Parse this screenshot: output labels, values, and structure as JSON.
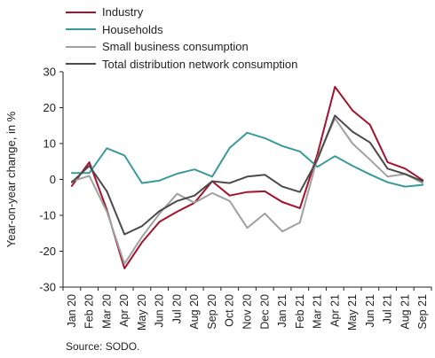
{
  "chart_data": {
    "type": "line",
    "ylabel": "Year-on-year change, in %",
    "ylim": [
      -30,
      30
    ],
    "yticks": [
      -30,
      -20,
      -10,
      0,
      10,
      20,
      30
    ],
    "categories": [
      "Jan 20",
      "Feb 20",
      "Mar 20",
      "Apr 20",
      "May 20",
      "Jun 20",
      "Jul 20",
      "Aug 20",
      "Sep 20",
      "Oct 20",
      "Nov 20",
      "Dec 20",
      "Jan 21",
      "Feb 21",
      "Mar 21",
      "Apr 21",
      "May 21",
      "Jun 21",
      "Jul 21",
      "Aug 21",
      "Sep 21"
    ],
    "x_tick_labels": [
      "Jan 20",
      "Feb 20",
      "Mar 20",
      "Apr 20",
      "May 20",
      "Jun 20",
      "Jul 20",
      "Aug 20",
      "Sep 20",
      "Oct 20",
      "Nov 20",
      "Dec 20",
      "Jan 21",
      "Feb 21",
      "Mar 21",
      "Apr 21",
      "May 21",
      "Jun 21",
      "Jul 21",
      "Aug 21",
      "Sep 21"
    ],
    "series": [
      {
        "name": "Industry",
        "color": "#a3132c",
        "values": [
          -1.8,
          4.8,
          -8.5,
          -24.8,
          -17.5,
          -11.8,
          -9.0,
          -6.5,
          -0.5,
          -4.5,
          -3.5,
          -3.3,
          -6.3,
          -8.0,
          7.0,
          25.8,
          19.2,
          15.2,
          4.8,
          3.0,
          -0.2
        ]
      },
      {
        "name": "Households",
        "color": "#3a9a9a",
        "values": [
          1.8,
          1.8,
          8.7,
          6.7,
          -1.0,
          -0.3,
          1.6,
          2.8,
          0.8,
          8.8,
          13.0,
          11.5,
          9.3,
          7.8,
          3.5,
          6.5,
          3.8,
          1.4,
          -0.8,
          -2.0,
          -1.5
        ]
      },
      {
        "name": "Small business consumption",
        "color": "#a0a0a0",
        "values": [
          -0.5,
          1.0,
          -9.0,
          -23.5,
          -16.0,
          -9.5,
          -4.0,
          -6.5,
          -3.8,
          -6.0,
          -13.5,
          -9.5,
          -14.5,
          -12.0,
          6.0,
          17.0,
          10.0,
          5.5,
          0.8,
          1.5,
          -1.0
        ]
      },
      {
        "name": "Total distribution network consumption",
        "color": "#4a4a4a",
        "values": [
          -0.8,
          3.8,
          -3.3,
          -15.3,
          -13.0,
          -8.8,
          -6.0,
          -4.5,
          -0.5,
          -1.0,
          0.8,
          1.3,
          -2.0,
          -3.5,
          5.5,
          17.8,
          13.3,
          10.3,
          3.0,
          1.5,
          -0.5
        ]
      }
    ],
    "grid": false,
    "legend_position": "top-left"
  },
  "legend": [
    {
      "label": "Industry",
      "color": "#a3132c"
    },
    {
      "label": "Households",
      "color": "#3a9a9a"
    },
    {
      "label": "Small business consumption",
      "color": "#a0a0a0"
    },
    {
      "label": "Total distribution network consumption",
      "color": "#4a4a4a"
    }
  ],
  "source": "Source: SODO."
}
